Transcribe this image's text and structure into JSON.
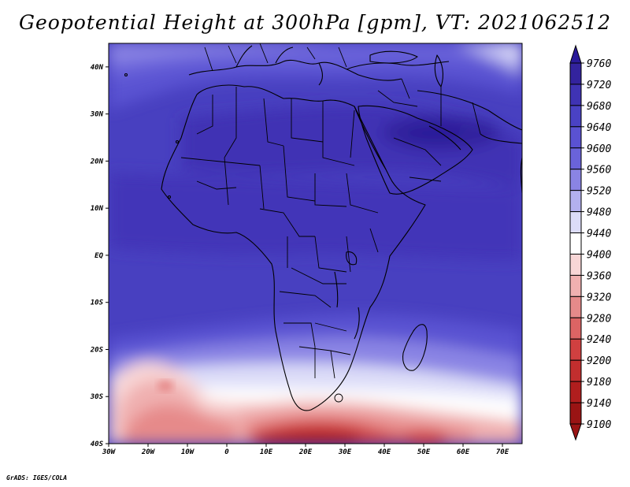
{
  "title": "Geopotential Height at 300hPa [gpm], VT: 2021062512",
  "footer": "GrADS: IGES/COLA",
  "map": {
    "region": "Africa",
    "lat_labels": [
      "40N",
      "30N",
      "20N",
      "10N",
      "EQ",
      "10S",
      "20S",
      "30S",
      "40S"
    ],
    "lon_labels": [
      "30W",
      "20W",
      "10W",
      "0",
      "10E",
      "20E",
      "30E",
      "40E",
      "50E",
      "60E",
      "70E"
    ],
    "lat_range": [
      -40,
      45
    ],
    "lon_range": [
      -30,
      75
    ]
  },
  "colorbar": {
    "levels": [
      "9760",
      "9720",
      "9680",
      "9640",
      "9600",
      "9560",
      "9520",
      "9480",
      "9440",
      "9400",
      "9360",
      "9320",
      "9280",
      "9240",
      "9200",
      "9180",
      "9140",
      "9100"
    ],
    "colors": [
      "#2a1a9a",
      "#33239e",
      "#3f33b4",
      "#4a42c4",
      "#5a52d2",
      "#6a63da",
      "#8a84e4",
      "#b3b0ee",
      "#dcdcf8",
      "#ffffff",
      "#f8d6d6",
      "#f0b0b0",
      "#e68a8a",
      "#dc6464",
      "#d04040",
      "#c22e2e",
      "#b01e1e",
      "#9a1414"
    ]
  }
}
